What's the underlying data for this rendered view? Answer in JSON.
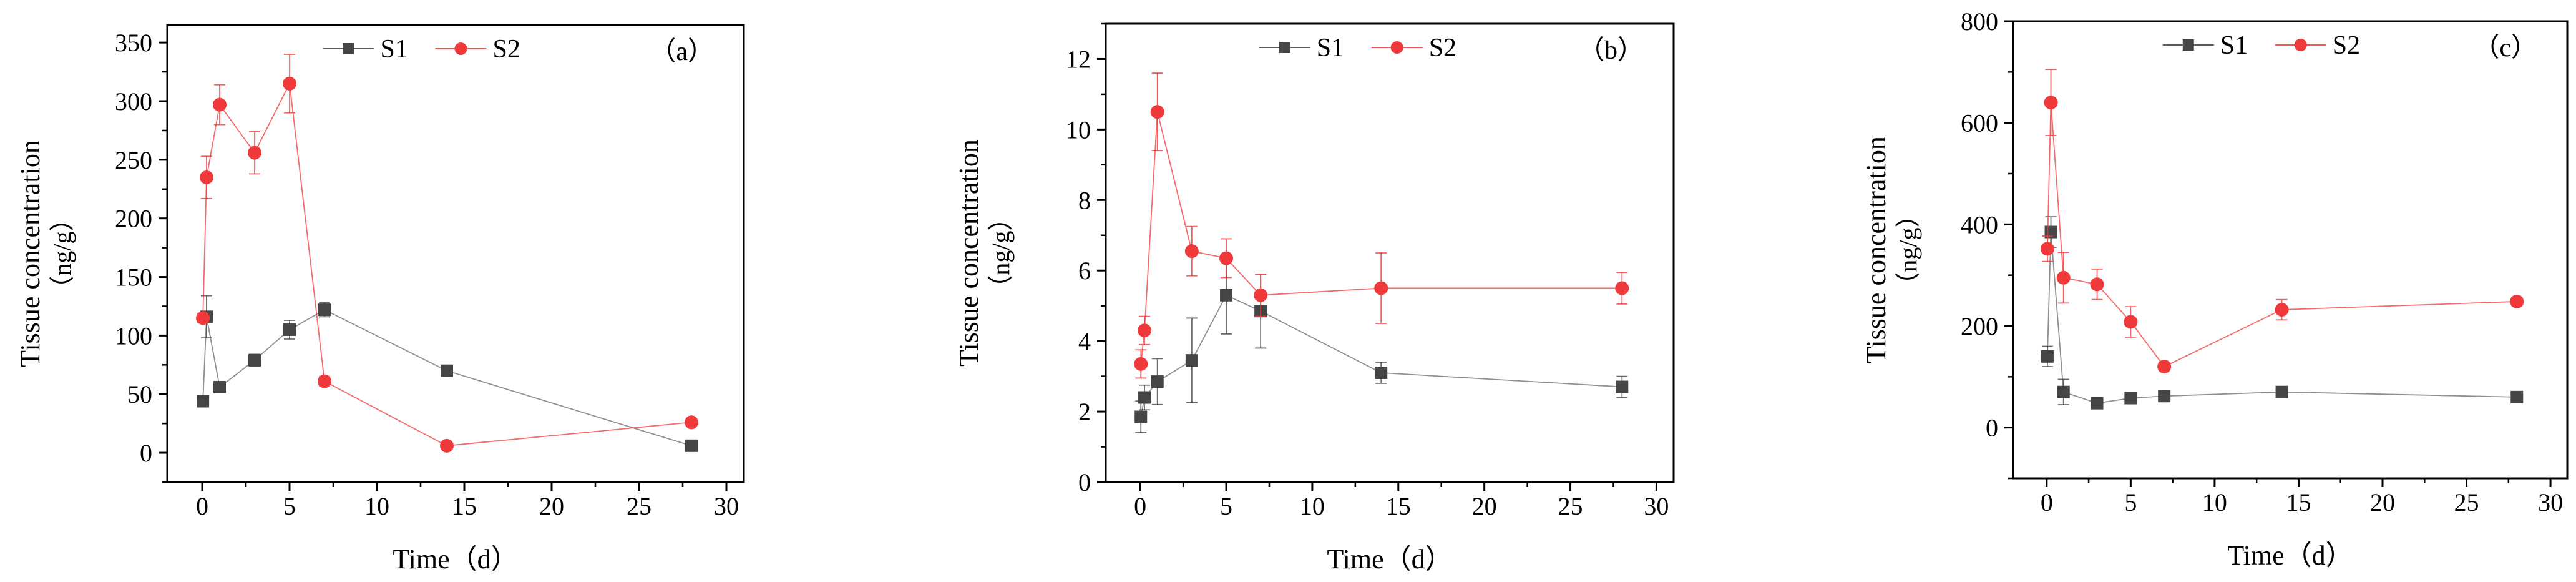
{
  "chart_data": [
    {
      "type": "line",
      "panel_label": "（a）",
      "xlabel": "Time（d）",
      "ylabel_line1": "Tissue concentration",
      "ylabel_line2": "（ng/g）",
      "xlim": [
        -2,
        31
      ],
      "ylim": [
        -25,
        365
      ],
      "xticks": [
        0,
        5,
        10,
        15,
        20,
        25,
        30
      ],
      "yticks": [
        0,
        50,
        100,
        150,
        200,
        250,
        300,
        350
      ],
      "legend": {
        "placement": "top-center",
        "entries": [
          "S1",
          "S2"
        ]
      },
      "series": [
        {
          "name": "S1",
          "color": "#454545",
          "marker": "square",
          "x": [
            0.04,
            0.25,
            1,
            3,
            5,
            7,
            14,
            28
          ],
          "y": [
            44,
            116,
            56,
            79,
            105,
            122,
            70,
            6
          ],
          "err": [
            3,
            18,
            4,
            5,
            8,
            6,
            3,
            3
          ]
        },
        {
          "name": "S2",
          "color": "#f0393a",
          "marker": "circle",
          "x": [
            0.04,
            0.25,
            1,
            3,
            5,
            7,
            14,
            28
          ],
          "y": [
            115,
            235,
            297,
            256,
            315,
            61,
            6,
            26
          ],
          "err": [
            4,
            18,
            17,
            18,
            25,
            4,
            2,
            3
          ]
        }
      ]
    },
    {
      "type": "line",
      "panel_label": "（b）",
      "xlabel": "Time（d）",
      "ylabel_line1": "Tissue concentration",
      "ylabel_line2": "（ng/g）",
      "xlim": [
        -2,
        31
      ],
      "ylim": [
        0,
        13
      ],
      "xticks": [
        0,
        5,
        10,
        15,
        20,
        25,
        30
      ],
      "yticks": [
        0,
        2,
        4,
        6,
        8,
        10,
        12
      ],
      "legend": {
        "placement": "top-center",
        "entries": [
          "S1",
          "S2"
        ]
      },
      "series": [
        {
          "name": "S1",
          "color": "#454545",
          "marker": "square",
          "x": [
            0.04,
            0.25,
            1,
            3,
            5,
            7,
            14,
            28
          ],
          "y": [
            1.85,
            2.4,
            2.85,
            3.45,
            5.3,
            4.85,
            3.1,
            2.7
          ],
          "err": [
            0.45,
            0.35,
            0.65,
            1.2,
            1.1,
            1.05,
            0.3,
            0.3
          ]
        },
        {
          "name": "S2",
          "color": "#f0393a",
          "marker": "circle",
          "x": [
            0.04,
            0.25,
            1,
            3,
            5,
            7,
            14,
            28
          ],
          "y": [
            3.35,
            4.3,
            10.5,
            6.55,
            6.35,
            5.3,
            5.5,
            5.5
          ],
          "err": [
            0.4,
            0.4,
            1.1,
            0.7,
            0.55,
            0.6,
            1.0,
            0.45
          ]
        }
      ]
    },
    {
      "type": "line",
      "panel_label": "（c）",
      "xlabel": "Time（d）",
      "ylabel_line1": "Tissue concentration",
      "ylabel_line2": "（ng/g）",
      "xlim": [
        -2,
        31
      ],
      "ylim": [
        -100,
        800
      ],
      "xticks": [
        0,
        5,
        10,
        15,
        20,
        25,
        30
      ],
      "yticks": [
        0,
        200,
        400,
        600,
        800
      ],
      "legend": {
        "placement": "top-center",
        "entries": [
          "S1",
          "S2"
        ]
      },
      "series": [
        {
          "name": "S1",
          "color": "#454545",
          "marker": "square",
          "x": [
            0.04,
            0.25,
            1,
            3,
            5,
            7,
            14,
            28
          ],
          "y": [
            140,
            385,
            70,
            48,
            58,
            62,
            70,
            60
          ],
          "err": [
            20,
            30,
            25,
            6,
            5,
            5,
            5,
            5
          ]
        },
        {
          "name": "S2",
          "color": "#f0393a",
          "marker": "circle",
          "x": [
            0.04,
            0.25,
            1,
            3,
            5,
            7,
            14,
            28
          ],
          "y": [
            352,
            640,
            295,
            282,
            208,
            120,
            232,
            248
          ],
          "err": [
            25,
            65,
            50,
            30,
            30,
            8,
            20,
            8
          ]
        }
      ]
    }
  ]
}
